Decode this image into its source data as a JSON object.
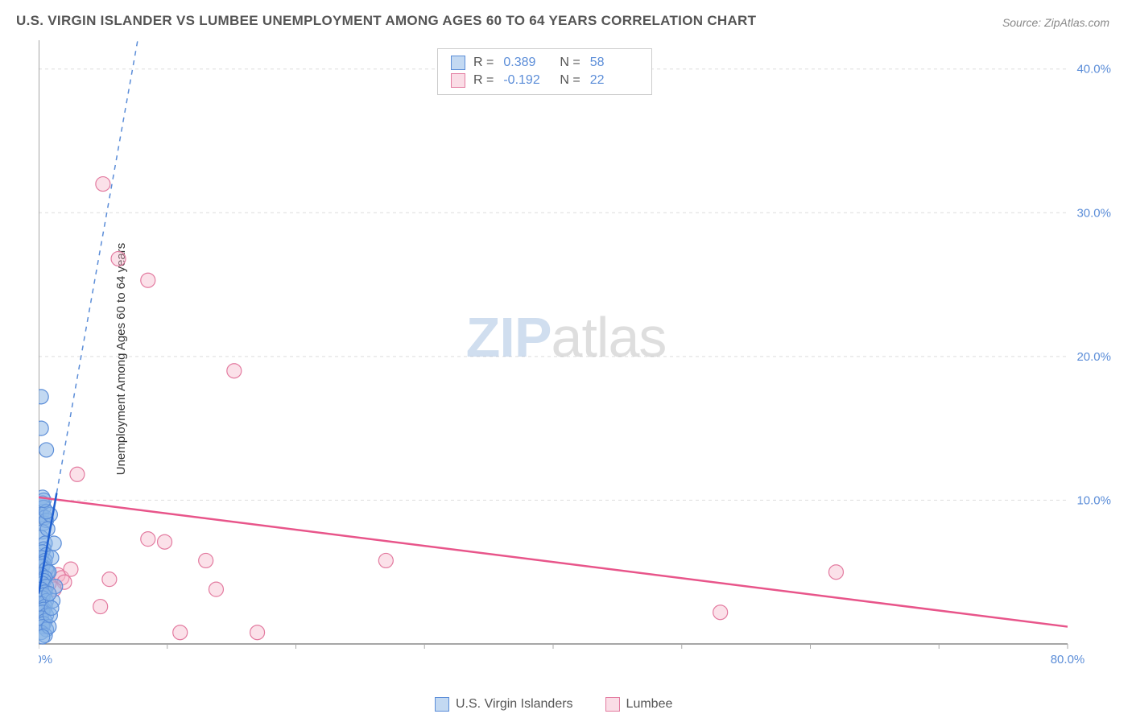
{
  "title": "U.S. VIRGIN ISLANDER VS LUMBEE UNEMPLOYMENT AMONG AGES 60 TO 64 YEARS CORRELATION CHART",
  "source_label": "Source:",
  "source_name": "ZipAtlas.com",
  "y_axis_label": "Unemployment Among Ages 60 to 64 years",
  "watermark_zip": "ZIP",
  "watermark_atlas": "atlas",
  "chart": {
    "type": "scatter",
    "xlim": [
      0,
      80
    ],
    "ylim": [
      0,
      42
    ],
    "x_ticks": [
      0,
      10,
      20,
      30,
      40,
      50,
      60,
      70,
      80
    ],
    "x_tick_labels": [
      "0.0%",
      "",
      "",
      "",
      "",
      "",
      "",
      "",
      "80.0%"
    ],
    "y_grid": [
      10,
      20,
      30,
      40
    ],
    "y_tick_labels": [
      "10.0%",
      "20.0%",
      "30.0%",
      "40.0%"
    ],
    "background_color": "#ffffff",
    "grid_color": "#dddddd",
    "axis_color": "#888888",
    "marker_radius": 9,
    "series": [
      {
        "name": "U.S. Virgin Islanders",
        "color_fill": "rgba(135,180,230,0.5)",
        "color_stroke": "#5b8dd8",
        "R": "0.389",
        "N": "58",
        "trend": {
          "x1": 0,
          "y1": 3.5,
          "x2": 1.4,
          "y2": 10.5,
          "extend_dash_to_y": 42
        },
        "points": [
          [
            0.2,
            17.2
          ],
          [
            0.2,
            15.0
          ],
          [
            0.6,
            13.5
          ],
          [
            0.3,
            10.2
          ],
          [
            0.3,
            9.8
          ],
          [
            0.4,
            9.5
          ],
          [
            0.2,
            9.0
          ],
          [
            0.5,
            8.8
          ],
          [
            0.4,
            8.4
          ],
          [
            0.6,
            8.6
          ],
          [
            0.3,
            7.8
          ],
          [
            0.2,
            7.4
          ],
          [
            0.5,
            7.0
          ],
          [
            0.4,
            6.6
          ],
          [
            0.3,
            6.4
          ],
          [
            0.6,
            6.2
          ],
          [
            0.2,
            6.0
          ],
          [
            0.5,
            5.8
          ],
          [
            0.4,
            5.6
          ],
          [
            0.3,
            5.4
          ],
          [
            0.6,
            5.2
          ],
          [
            0.7,
            5.0
          ],
          [
            0.8,
            5.0
          ],
          [
            0.2,
            4.8
          ],
          [
            0.5,
            4.6
          ],
          [
            0.4,
            4.4
          ],
          [
            0.3,
            4.2
          ],
          [
            0.6,
            4.0
          ],
          [
            0.2,
            3.8
          ],
          [
            0.5,
            3.6
          ],
          [
            0.4,
            3.4
          ],
          [
            0.3,
            3.2
          ],
          [
            0.6,
            3.0
          ],
          [
            0.2,
            2.8
          ],
          [
            0.5,
            2.6
          ],
          [
            0.4,
            2.4
          ],
          [
            0.3,
            2.2
          ],
          [
            0.6,
            2.0
          ],
          [
            0.2,
            1.8
          ],
          [
            0.5,
            1.6
          ],
          [
            0.4,
            1.4
          ],
          [
            0.3,
            1.2
          ],
          [
            0.6,
            1.0
          ],
          [
            0.2,
            0.8
          ],
          [
            0.5,
            0.6
          ],
          [
            0.8,
            1.2
          ],
          [
            1.0,
            6.0
          ],
          [
            1.2,
            7.0
          ],
          [
            0.9,
            2.0
          ],
          [
            1.1,
            3.0
          ],
          [
            0.7,
            8.0
          ],
          [
            0.9,
            9.0
          ],
          [
            1.3,
            4.0
          ],
          [
            0.8,
            3.5
          ],
          [
            1.0,
            2.5
          ],
          [
            0.6,
            9.2
          ],
          [
            0.4,
            10.0
          ],
          [
            0.3,
            0.5
          ]
        ]
      },
      {
        "name": "Lumbee",
        "color_fill": "rgba(245,180,200,0.4)",
        "color_stroke": "#e37ba0",
        "R": "-0.192",
        "N": "22",
        "trend": {
          "x1": 0,
          "y1": 10.2,
          "x2": 80,
          "y2": 1.2
        },
        "points": [
          [
            5.0,
            32.0
          ],
          [
            6.2,
            26.8
          ],
          [
            8.5,
            25.3
          ],
          [
            15.2,
            19.0
          ],
          [
            3.0,
            11.8
          ],
          [
            1.5,
            4.8
          ],
          [
            1.8,
            4.6
          ],
          [
            2.0,
            4.3
          ],
          [
            4.8,
            2.6
          ],
          [
            5.5,
            4.5
          ],
          [
            8.5,
            7.3
          ],
          [
            9.8,
            7.1
          ],
          [
            13.0,
            5.8
          ],
          [
            13.8,
            3.8
          ],
          [
            17.0,
            0.8
          ],
          [
            11.0,
            0.8
          ],
          [
            27.0,
            5.8
          ],
          [
            53.0,
            2.2
          ],
          [
            62.0,
            5.0
          ],
          [
            2.5,
            5.2
          ],
          [
            1.2,
            3.8
          ],
          [
            0.8,
            4.2
          ]
        ]
      }
    ]
  },
  "legend": {
    "stat_R_label": "R =",
    "stat_N_label": "N ="
  }
}
